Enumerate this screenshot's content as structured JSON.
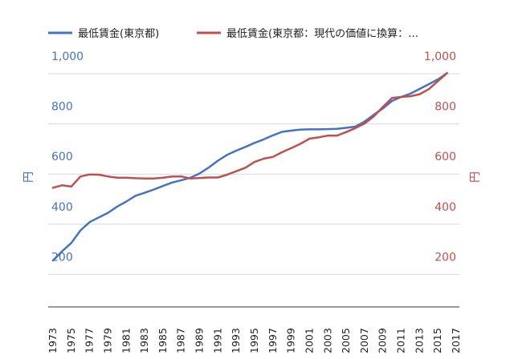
{
  "chart_data": {
    "type": "line",
    "title": "",
    "legend_position": "top-left",
    "y_left": {
      "label": "円",
      "ticks": [
        "200",
        "400",
        "600",
        "800",
        "1,000"
      ],
      "tick_values": [
        200,
        400,
        600,
        800,
        1000
      ],
      "ylim": [
        0,
        1000
      ],
      "color": "#4472c4"
    },
    "y_right": {
      "label": "円",
      "ticks": [
        "200",
        "400",
        "600",
        "800",
        "1,000"
      ],
      "tick_values": [
        200,
        400,
        600,
        800,
        1000
      ],
      "ylim": [
        0,
        1000
      ],
      "color": "#c0504d"
    },
    "x_ticks": [
      "1973",
      "1975",
      "1977",
      "1979",
      "1981",
      "1983",
      "1985",
      "1987",
      "1989",
      "1991",
      "1993",
      "1995",
      "1997",
      "1999",
      "2001",
      "2003",
      "2005",
      "2007",
      "2009",
      "2011",
      "2013",
      "2015",
      "2017"
    ],
    "x_range": [
      1973,
      2017
    ],
    "series": [
      {
        "name": "最低賃金(東京都)",
        "legend_label": "最低賃金(東京都)",
        "color": "#4472c4",
        "x": [
          1973,
          1974,
          1975,
          1976,
          1977,
          1978,
          1979,
          1980,
          1981,
          1982,
          1983,
          1984,
          1985,
          1986,
          1987,
          1988,
          1989,
          1990,
          1991,
          1992,
          1993,
          1994,
          1995,
          1996,
          1997,
          1998,
          1999,
          2000,
          2001,
          2002,
          2003,
          2004,
          2005,
          2006,
          2007,
          2008,
          2009,
          2010,
          2011,
          2012,
          2013,
          2014,
          2015,
          2016
        ],
        "values": [
          185,
          222,
          255,
          305,
          338,
          357,
          375,
          400,
          420,
          443,
          455,
          468,
          482,
          496,
          505,
          515,
          532,
          556,
          583,
          606,
          623,
          638,
          654,
          668,
          684,
          698,
          703,
          707,
          708,
          708,
          709,
          710,
          714,
          719,
          739,
          766,
          791,
          821,
          837,
          850,
          869,
          888,
          907,
          932
        ]
      },
      {
        "name": "最低賃金(東京都：現代の価値に換算：…",
        "legend_label": "最低賃金(東京都：現代の価値に換算：…",
        "color": "#c0504d",
        "x": [
          1973,
          1974,
          1975,
          1976,
          1977,
          1978,
          1979,
          1980,
          1981,
          1982,
          1983,
          1984,
          1985,
          1986,
          1987,
          1988,
          1989,
          1990,
          1991,
          1992,
          1993,
          1994,
          1995,
          1996,
          1997,
          1998,
          1999,
          2000,
          2001,
          2002,
          2003,
          2004,
          2005,
          2006,
          2007,
          2008,
          2009,
          2010,
          2011,
          2012,
          2013,
          2014,
          2015,
          2016
        ],
        "values": [
          475,
          485,
          480,
          520,
          528,
          527,
          520,
          515,
          515,
          513,
          512,
          512,
          515,
          520,
          520,
          512,
          514,
          516,
          516,
          527,
          541,
          555,
          578,
          591,
          598,
          617,
          633,
          650,
          671,
          676,
          683,
          683,
          697,
          713,
          731,
          759,
          797,
          833,
          837,
          840,
          848,
          868,
          900,
          932
        ]
      }
    ]
  }
}
